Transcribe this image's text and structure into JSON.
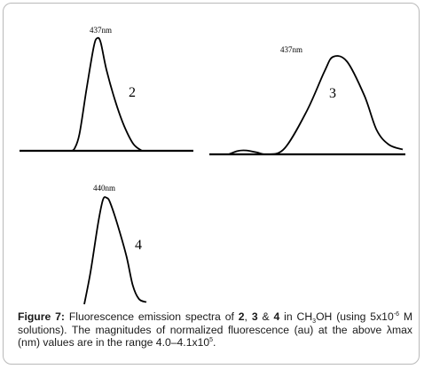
{
  "chart_data": [
    {
      "type": "line",
      "compound": "2",
      "peak_label": "437nm",
      "peak_nm": 437,
      "curve": [
        [
          0.0,
          0
        ],
        [
          0.05,
          0.02
        ],
        [
          0.12,
          0.15
        ],
        [
          0.22,
          0.55
        ],
        [
          0.32,
          0.92
        ],
        [
          0.37,
          1.0
        ],
        [
          0.42,
          0.96
        ],
        [
          0.5,
          0.72
        ],
        [
          0.62,
          0.45
        ],
        [
          0.75,
          0.22
        ],
        [
          0.88,
          0.06
        ],
        [
          1.0,
          0
        ]
      ]
    },
    {
      "type": "line",
      "compound": "3",
      "peak_label": "437nm",
      "peak_nm": 437,
      "curve": [
        [
          0.0,
          0
        ],
        [
          0.05,
          0.035
        ],
        [
          0.1,
          0.04
        ],
        [
          0.16,
          0.02
        ],
        [
          0.22,
          0.0
        ],
        [
          0.32,
          0.06
        ],
        [
          0.45,
          0.45
        ],
        [
          0.55,
          0.85
        ],
        [
          0.6,
          1.0
        ],
        [
          0.68,
          0.95
        ],
        [
          0.78,
          0.6
        ],
        [
          0.85,
          0.25
        ],
        [
          0.92,
          0.1
        ],
        [
          1.0,
          0.05
        ]
      ]
    },
    {
      "type": "line",
      "compound": "4",
      "peak_label": "440nm",
      "peak_nm": 440,
      "curve": [
        [
          0.0,
          0
        ],
        [
          0.1,
          0.3
        ],
        [
          0.22,
          0.75
        ],
        [
          0.3,
          0.98
        ],
        [
          0.36,
          1.0
        ],
        [
          0.42,
          0.95
        ],
        [
          0.55,
          0.72
        ],
        [
          0.68,
          0.45
        ],
        [
          0.78,
          0.18
        ],
        [
          0.88,
          0.05
        ],
        [
          1.0,
          0.02
        ]
      ]
    }
  ],
  "caption": {
    "label": "Figure 7:",
    "t1": " Fluorescence emission spectra of ",
    "c2": "2",
    "t2": ", ",
    "c3": "3",
    "t3": " & ",
    "c4": "4",
    "t4": " in CH",
    "sub3": "3",
    "t5": "OH (using 5x10",
    "exp1": "-6",
    "t6": " M solutions). The magnitudes of normalized fluorescence (au) at the above λmax (nm) values are in the range 4.0–4.1x10",
    "exp2": "5",
    "t7": "."
  }
}
